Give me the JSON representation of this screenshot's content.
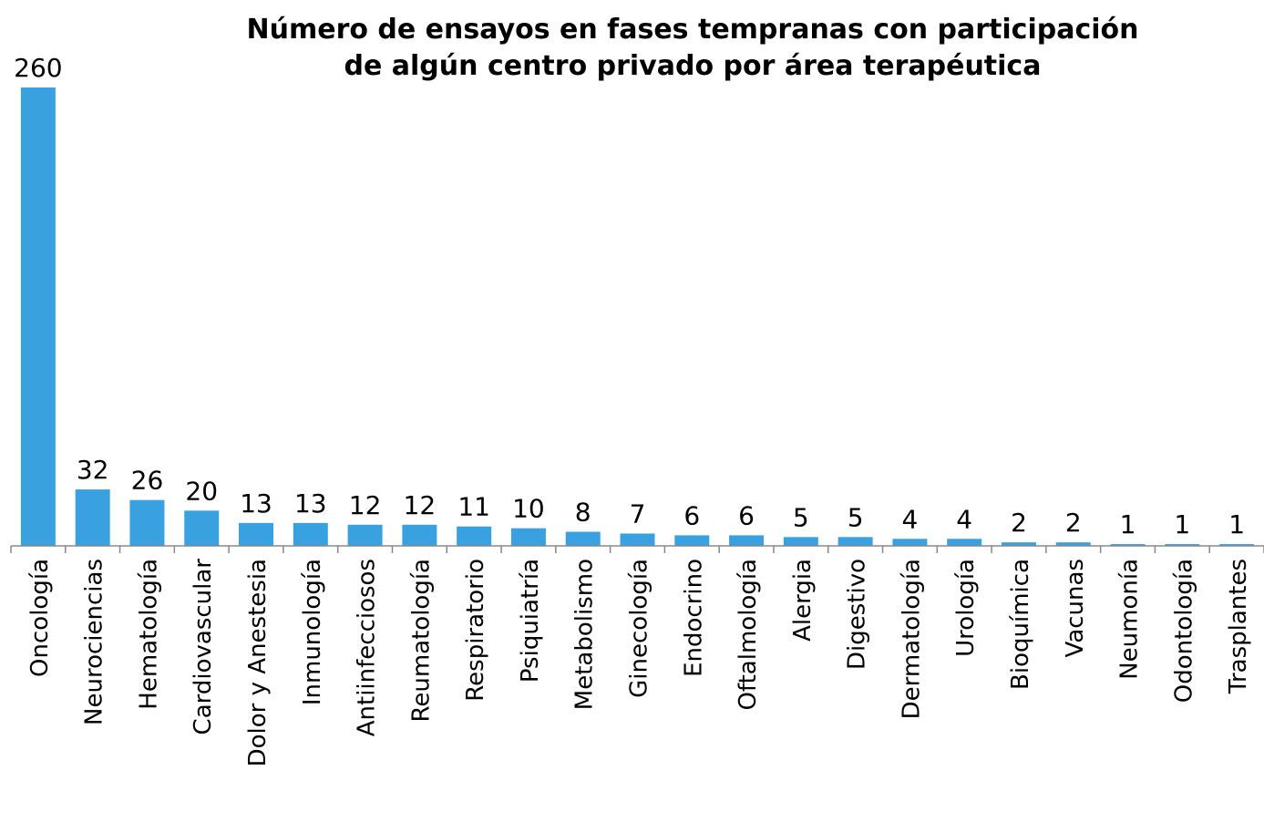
{
  "chart_data": {
    "type": "bar",
    "title": [
      "Número de ensayos en fases tempranas con participación",
      "de algún centro privado por área terapéutica"
    ],
    "categories": [
      "Oncología",
      "Neurociencias",
      "Hematología",
      "Cardiovascular",
      "Dolor y Anestesia",
      "Inmunología",
      "Antiinfecciosos",
      "Reumatología",
      "Respiratorio",
      "Psiquiatría",
      "Metabolismo",
      "Ginecología",
      "Endocrino",
      "Oftalmología",
      "Alergia",
      "Digestivo",
      "Dermatología",
      "Urología",
      "Bioquímica",
      "Vacunas",
      "Neumonía",
      "Odontología",
      "Trasplantes"
    ],
    "values": [
      260,
      32,
      26,
      20,
      13,
      13,
      12,
      12,
      11,
      10,
      8,
      7,
      6,
      6,
      5,
      5,
      4,
      4,
      2,
      2,
      1,
      1,
      1
    ],
    "color": "#3aa1e0"
  }
}
